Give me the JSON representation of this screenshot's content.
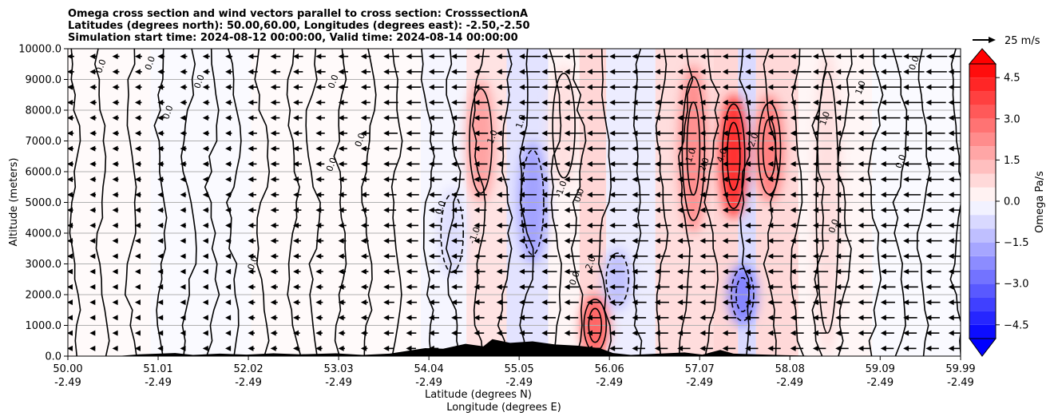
{
  "chart_data": {
    "type": "contour",
    "title": [
      "Omega cross section and wind vectors parallel to cross section: CrosssectionA",
      "Latitudes (degrees north): 50.00,60.00, Longitudes (degrees east): -2.50,-2.50",
      "Simulation start time: 2024-08-12 00:00:00, Valid time: 2024-08-14 00:00:00"
    ],
    "ylabel": "Altitude (meters)",
    "xlabel_lat": "Latitude (degrees N)",
    "xlabel_lon": "Longitude (degrees E)",
    "xlim": [
      50.0,
      59.99
    ],
    "ylim": [
      0,
      10000
    ],
    "x_ticks": [
      {
        "lat": "50.00",
        "lon": "-2.49"
      },
      {
        "lat": "51.01",
        "lon": "-2.49"
      },
      {
        "lat": "52.02",
        "lon": "-2.49"
      },
      {
        "lat": "53.03",
        "lon": "-2.49"
      },
      {
        "lat": "54.04",
        "lon": "-2.49"
      },
      {
        "lat": "55.05",
        "lon": "-2.49"
      },
      {
        "lat": "56.06",
        "lon": "-2.49"
      },
      {
        "lat": "57.07",
        "lon": "-2.49"
      },
      {
        "lat": "58.08",
        "lon": "-2.49"
      },
      {
        "lat": "59.09",
        "lon": "-2.49"
      },
      {
        "lat": "59.99",
        "lon": "-2.49"
      }
    ],
    "y_ticks": [
      "0.0",
      "1000.0",
      "2000.0",
      "3000.0",
      "4000.0",
      "5000.0",
      "6000.0",
      "7000.0",
      "8000.0",
      "9000.0",
      "10000.0"
    ],
    "y_tick_values": [
      0,
      1000,
      2000,
      3000,
      4000,
      5000,
      6000,
      7000,
      8000,
      9000,
      10000
    ],
    "grid": "horizontal",
    "colorbar": {
      "label": "Omega Pa/s",
      "ticks": [
        "4.5",
        "3.0",
        "1.5",
        "0.0",
        "−1.5",
        "−3.0",
        "−4.5"
      ],
      "tick_values": [
        4.5,
        3.0,
        1.5,
        0.0,
        -1.5,
        -3.0,
        -4.5
      ],
      "range": [
        -5.0,
        5.0
      ],
      "extend": "both",
      "positive_color": "#ff0000",
      "negative_color": "#0000ff"
    },
    "quiver_key": "25 m/s",
    "omega_features": [
      {
        "lat": 50.35,
        "z_range": [
          0,
          10000
        ],
        "value": 0.3
      },
      {
        "lat": 51.5,
        "z_range": [
          0,
          10000
        ],
        "value": -0.3
      },
      {
        "lat": 52.6,
        "z_range": [
          0,
          10000
        ],
        "value": 0.3
      },
      {
        "lat": 53.6,
        "z_range": [
          0,
          10000
        ],
        "value": 0.3
      },
      {
        "lat": 54.3,
        "z_range": [
          2500,
          5500
        ],
        "value": -0.6
      },
      {
        "lat": 54.62,
        "z_range": [
          5000,
          9000
        ],
        "value": 1.8
      },
      {
        "lat": 55.2,
        "z_range": [
          3000,
          7000
        ],
        "value": -1.8
      },
      {
        "lat": 55.55,
        "z_range": [
          5500,
          9500
        ],
        "value": 0.6
      },
      {
        "lat": 55.9,
        "z_range": [
          0,
          2000
        ],
        "value": 3.0
      },
      {
        "lat": 56.15,
        "z_range": [
          1500,
          3500
        ],
        "value": -1.2
      },
      {
        "lat": 57.0,
        "z_range": [
          4000,
          9500
        ],
        "value": 2.2
      },
      {
        "lat": 57.45,
        "z_range": [
          4500,
          8500
        ],
        "value": 4.0
      },
      {
        "lat": 57.55,
        "z_range": [
          1000,
          3000
        ],
        "value": -2.4
      },
      {
        "lat": 57.85,
        "z_range": [
          5000,
          8500
        ],
        "value": 2.5
      },
      {
        "lat": 58.5,
        "z_range": [
          0,
          10000
        ],
        "value": 0.6
      },
      {
        "lat": 59.5,
        "z_range": [
          0,
          10000
        ],
        "value": -0.3
      }
    ],
    "contour_labels": [
      {
        "text": "0.0",
        "lat": 50.4,
        "z": 9400
      },
      {
        "text": "0.0",
        "lat": 50.95,
        "z": 9500
      },
      {
        "text": "0.0",
        "lat": 51.5,
        "z": 8900
      },
      {
        "text": "0.0",
        "lat": 51.15,
        "z": 7900
      },
      {
        "text": "0.0",
        "lat": 53.0,
        "z": 8900
      },
      {
        "text": "0.0",
        "lat": 53.3,
        "z": 7000
      },
      {
        "text": "0.0",
        "lat": 52.98,
        "z": 6200
      },
      {
        "text": "0.0",
        "lat": 52.1,
        "z": 3000
      },
      {
        "text": "0.0",
        "lat": 54.2,
        "z": 4800
      },
      {
        "text": "-1.0",
        "lat": 54.58,
        "z": 3900
      },
      {
        "text": "1.0",
        "lat": 54.78,
        "z": 7100
      },
      {
        "text": "1.0",
        "lat": 55.1,
        "z": 7600
      },
      {
        "text": "-1.0",
        "lat": 55.55,
        "z": 5400
      },
      {
        "text": "0.0",
        "lat": 55.75,
        "z": 5200
      },
      {
        "text": "2.0",
        "lat": 55.88,
        "z": 3000
      },
      {
        "text": "0.0",
        "lat": 55.7,
        "z": 2500
      },
      {
        "text": "1.0",
        "lat": 57.0,
        "z": 6500
      },
      {
        "text": "2.0",
        "lat": 57.15,
        "z": 6200
      },
      {
        "text": "4.0",
        "lat": 57.35,
        "z": 6500
      },
      {
        "text": "2.0",
        "lat": 57.7,
        "z": 7000
      },
      {
        "text": "0.0",
        "lat": 58.6,
        "z": 4200
      },
      {
        "text": "1.0",
        "lat": 58.5,
        "z": 7700
      },
      {
        "text": "0.0",
        "lat": 59.35,
        "z": 6300
      },
      {
        "text": "0.0",
        "lat": 59.5,
        "z": 9500
      },
      {
        "text": "1.0",
        "lat": 58.9,
        "z": 8700
      }
    ]
  }
}
